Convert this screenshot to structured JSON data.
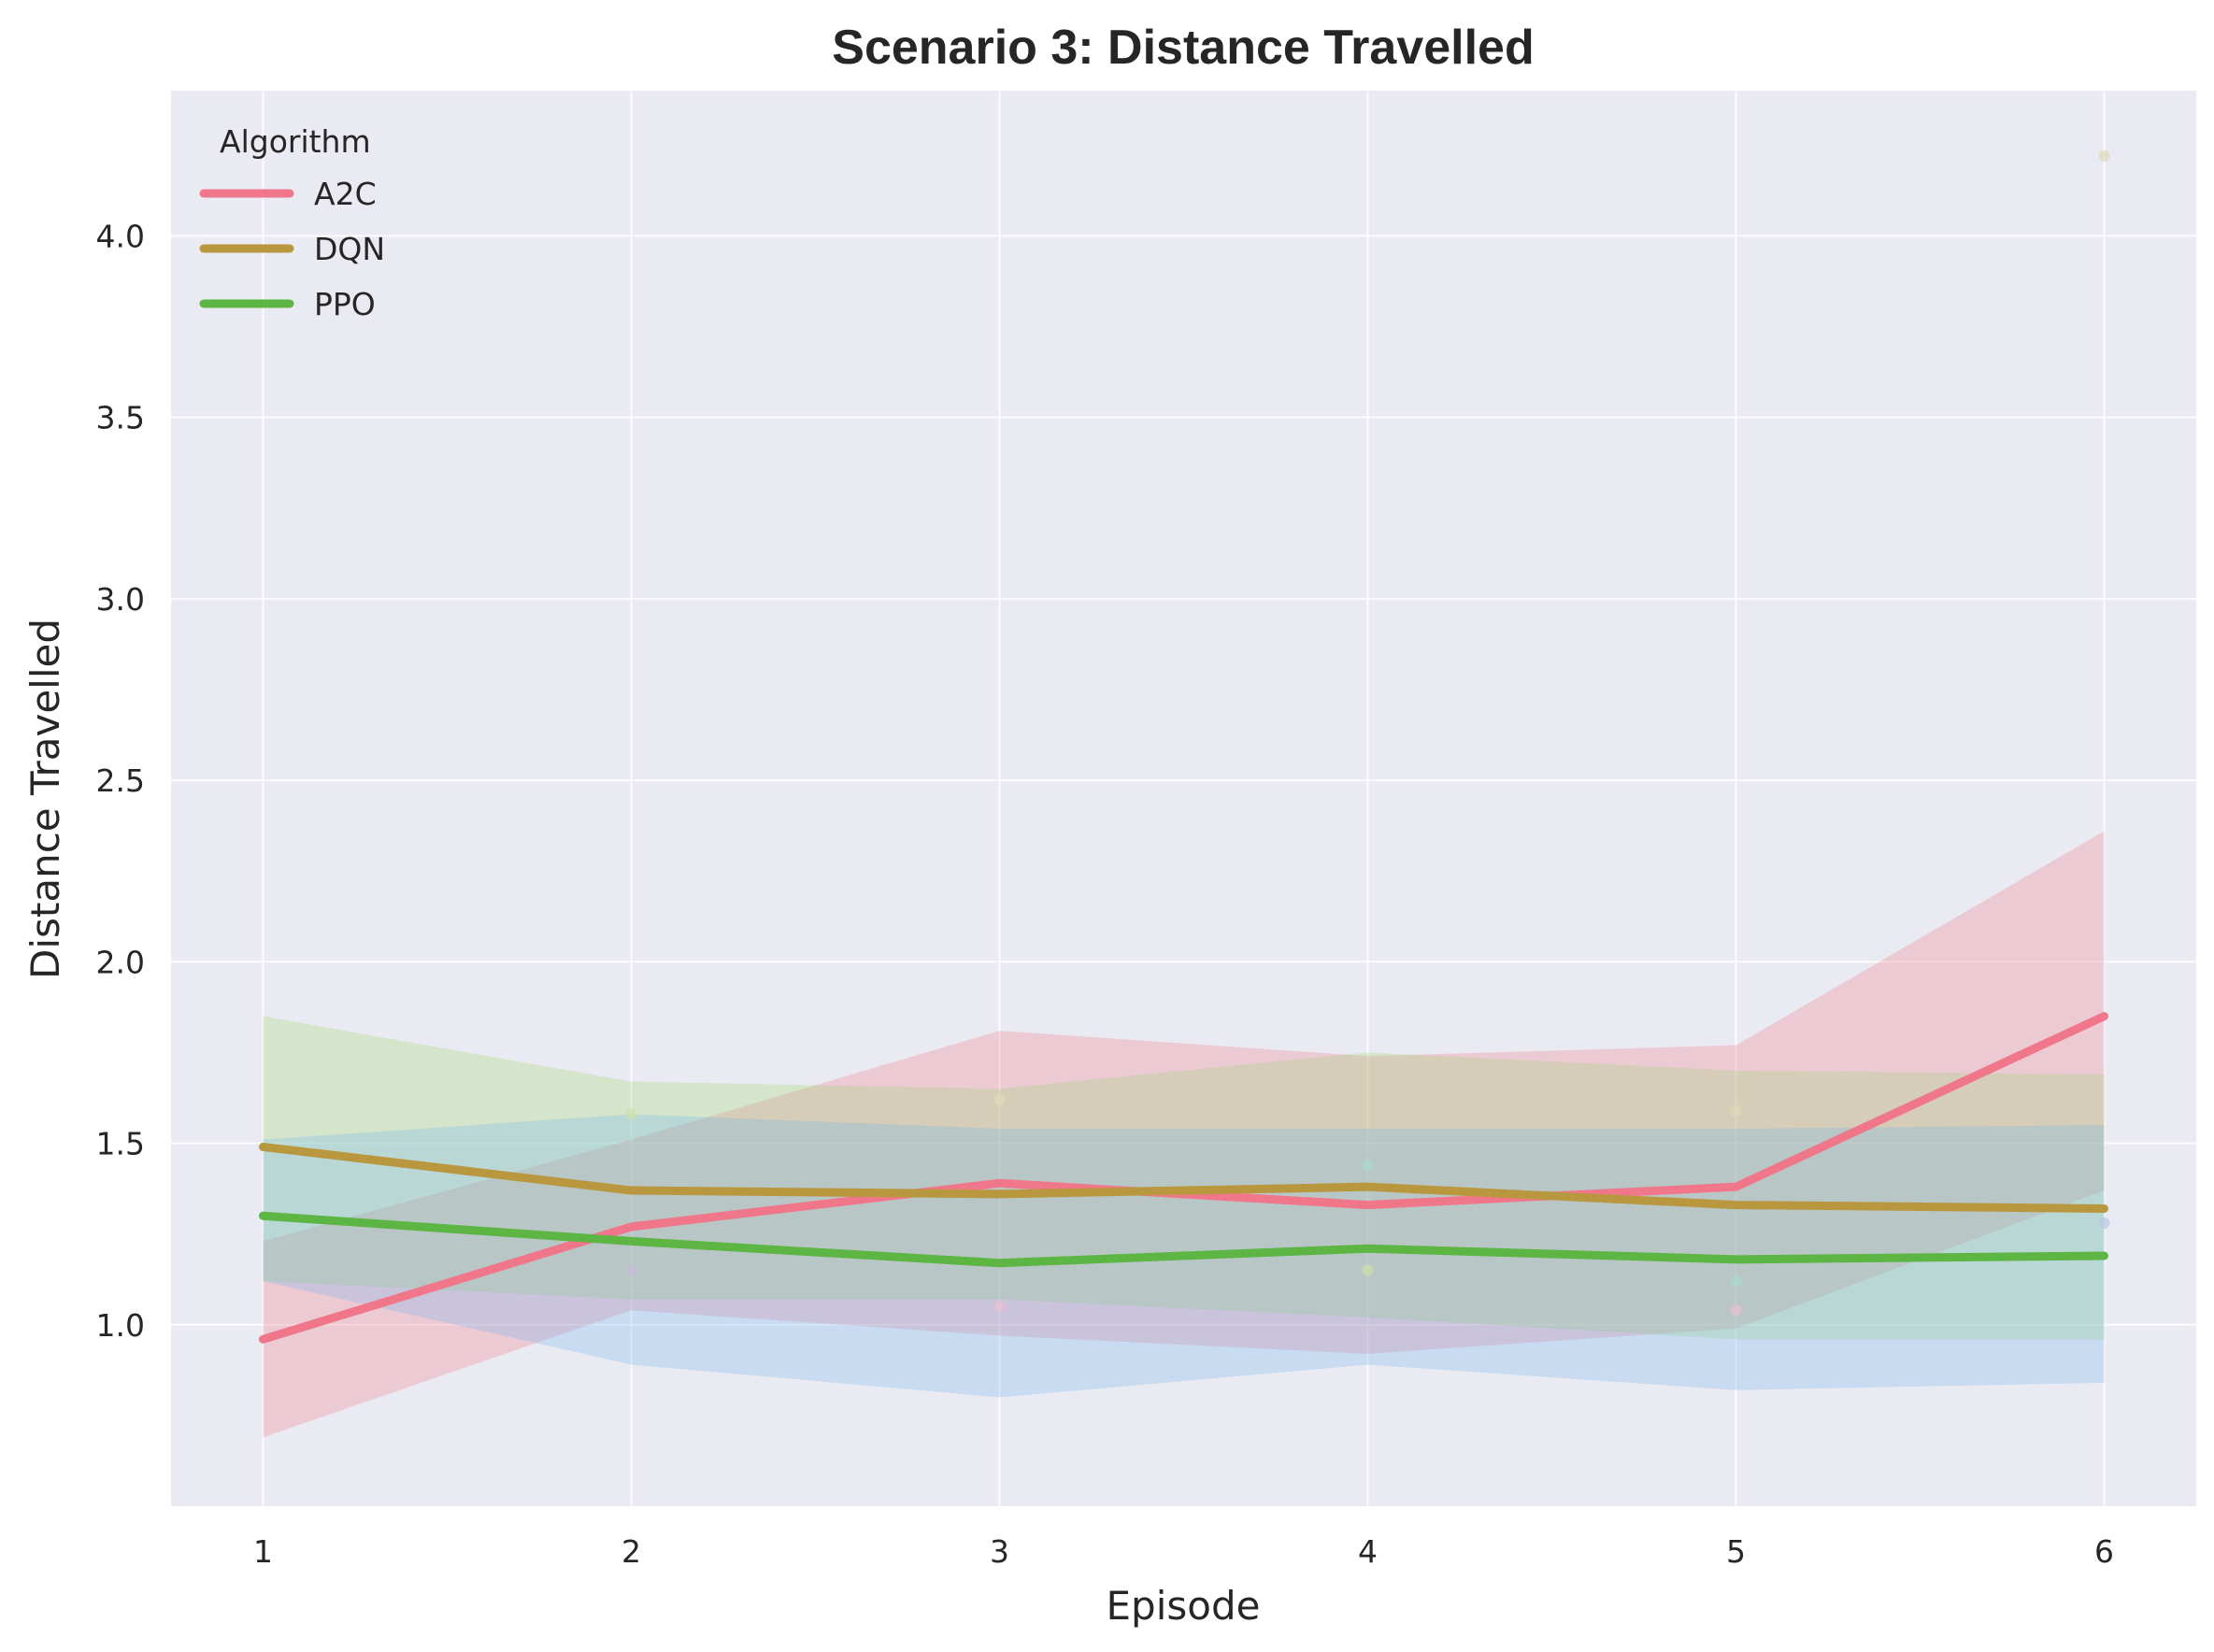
{
  "chart_data": {
    "type": "line",
    "title": "Scenario 3: Distance Travelled",
    "xlabel": "Episode",
    "ylabel": "Distance Travelled",
    "x": [
      1,
      2,
      3,
      4,
      5,
      6
    ],
    "xlim": [
      0.75,
      6.25
    ],
    "ylim": [
      0.5,
      4.4
    ],
    "xticks": [
      "1",
      "2",
      "3",
      "4",
      "5",
      "6"
    ],
    "yticks": [
      1.0,
      1.5,
      2.0,
      2.5,
      3.0,
      3.5,
      4.0
    ],
    "ytick_labels": [
      "1.0",
      "1.5",
      "2.0",
      "2.5",
      "3.0",
      "3.5",
      "4.0"
    ],
    "grid": true,
    "legend": {
      "title": "Algorithm",
      "position": "top-left"
    },
    "series": [
      {
        "name": "A2C",
        "color": "#f0778a",
        "values": [
          0.96,
          1.27,
          1.39,
          1.33,
          1.38,
          1.85
        ],
        "band_low": [
          0.69,
          1.04,
          0.97,
          0.92,
          0.99,
          1.37
        ],
        "band_high": [
          1.23,
          1.51,
          1.81,
          1.74,
          1.77,
          2.36
        ]
      },
      {
        "name": "DQN",
        "color": "#b9973e",
        "values": [
          1.49,
          1.37,
          1.36,
          1.38,
          1.33,
          1.32
        ],
        "band_low": [
          1.12,
          1.07,
          1.07,
          1.02,
          0.96,
          0.96
        ],
        "band_high": [
          1.85,
          1.67,
          1.65,
          1.75,
          1.7,
          1.69
        ]
      },
      {
        "name": "PPO",
        "color": "#5db544",
        "values": [
          1.3,
          1.23,
          1.17,
          1.21,
          1.18,
          1.19
        ],
        "band_low": [
          1.12,
          0.89,
          0.8,
          0.89,
          0.82,
          0.84
        ],
        "band_high": [
          1.51,
          1.58,
          1.54,
          1.54,
          1.54,
          1.55
        ]
      }
    ],
    "bands": [
      {
        "color": "#f0778a",
        "series": "A2C"
      },
      {
        "color": "#9cd86d",
        "series": "DQN"
      },
      {
        "color": "#6fb5ec",
        "series": "PPO"
      }
    ],
    "points": [
      {
        "x": 6,
        "y": 4.22,
        "color": "#e0d8b8"
      },
      {
        "x": 2,
        "y": 1.58,
        "color": "#cfe0a8"
      },
      {
        "x": 3,
        "y": 1.62,
        "color": "#e0d8b8"
      },
      {
        "x": 5,
        "y": 1.59,
        "color": "#e0d8b8"
      },
      {
        "x": 4,
        "y": 1.44,
        "color": "#a8d8d0"
      },
      {
        "x": 4,
        "y": 1.15,
        "color": "#cfe0a8"
      },
      {
        "x": 5,
        "y": 1.12,
        "color": "#a8d8d0"
      },
      {
        "x": 2,
        "y": 1.15,
        "color": "#c8b8d8"
      },
      {
        "x": 3,
        "y": 1.05,
        "color": "#e8c0d0"
      },
      {
        "x": 5,
        "y": 1.04,
        "color": "#e8c0d0"
      },
      {
        "x": 6,
        "y": 1.28,
        "color": "#b8c8e0"
      }
    ]
  }
}
